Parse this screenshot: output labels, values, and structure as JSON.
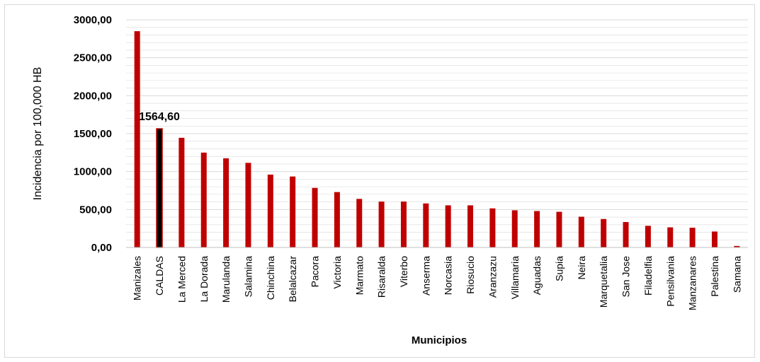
{
  "chart_data": {
    "type": "bar",
    "categories": [
      "Manizales",
      "CALDAS",
      "La Merced",
      "La Dorada",
      "Marulanda",
      "Salamina",
      "Chinchina",
      "Belalcazar",
      "Pacora",
      "Victoria",
      "Marmato",
      "Risaralda",
      "Viterbo",
      "Anserma",
      "Norcasia",
      "Riosucio",
      "Aranzazu",
      "Villamaria",
      "Aguadas",
      "Supia",
      "Neira",
      "Marquetalia",
      "San Jose",
      "Filadelfia",
      "Pensilvania",
      "Manzanares",
      "Palestina",
      "Samana"
    ],
    "values": [
      2850,
      1564.6,
      1445,
      1250,
      1175,
      1115,
      960,
      935,
      785,
      730,
      640,
      605,
      605,
      580,
      555,
      555,
      515,
      490,
      480,
      470,
      405,
      375,
      335,
      285,
      265,
      260,
      210,
      20
    ],
    "highlight_index": 1,
    "data_labels": [
      {
        "index": 1,
        "text": "1564,60"
      }
    ],
    "ylim": [
      0,
      3000
    ],
    "yticks": [
      {
        "value": 0,
        "label": "0,00"
      },
      {
        "value": 500,
        "label": "500,00"
      },
      {
        "value": 1000,
        "label": "1000,00"
      },
      {
        "value": 1500,
        "label": "1500,00"
      },
      {
        "value": 2000,
        "label": "2000,00"
      },
      {
        "value": 2500,
        "label": "2500,00"
      },
      {
        "value": 3000,
        "label": "3000,00"
      }
    ],
    "ylabel": "Incidencia por 100,000 HB",
    "xlabel": "Municipios",
    "grid": true,
    "colors": {
      "bar": "#c00000",
      "highlight": "#000000",
      "highlight_border": "#c00000",
      "grid": "#d9d9d9",
      "axis": "#bfbfbf"
    }
  }
}
